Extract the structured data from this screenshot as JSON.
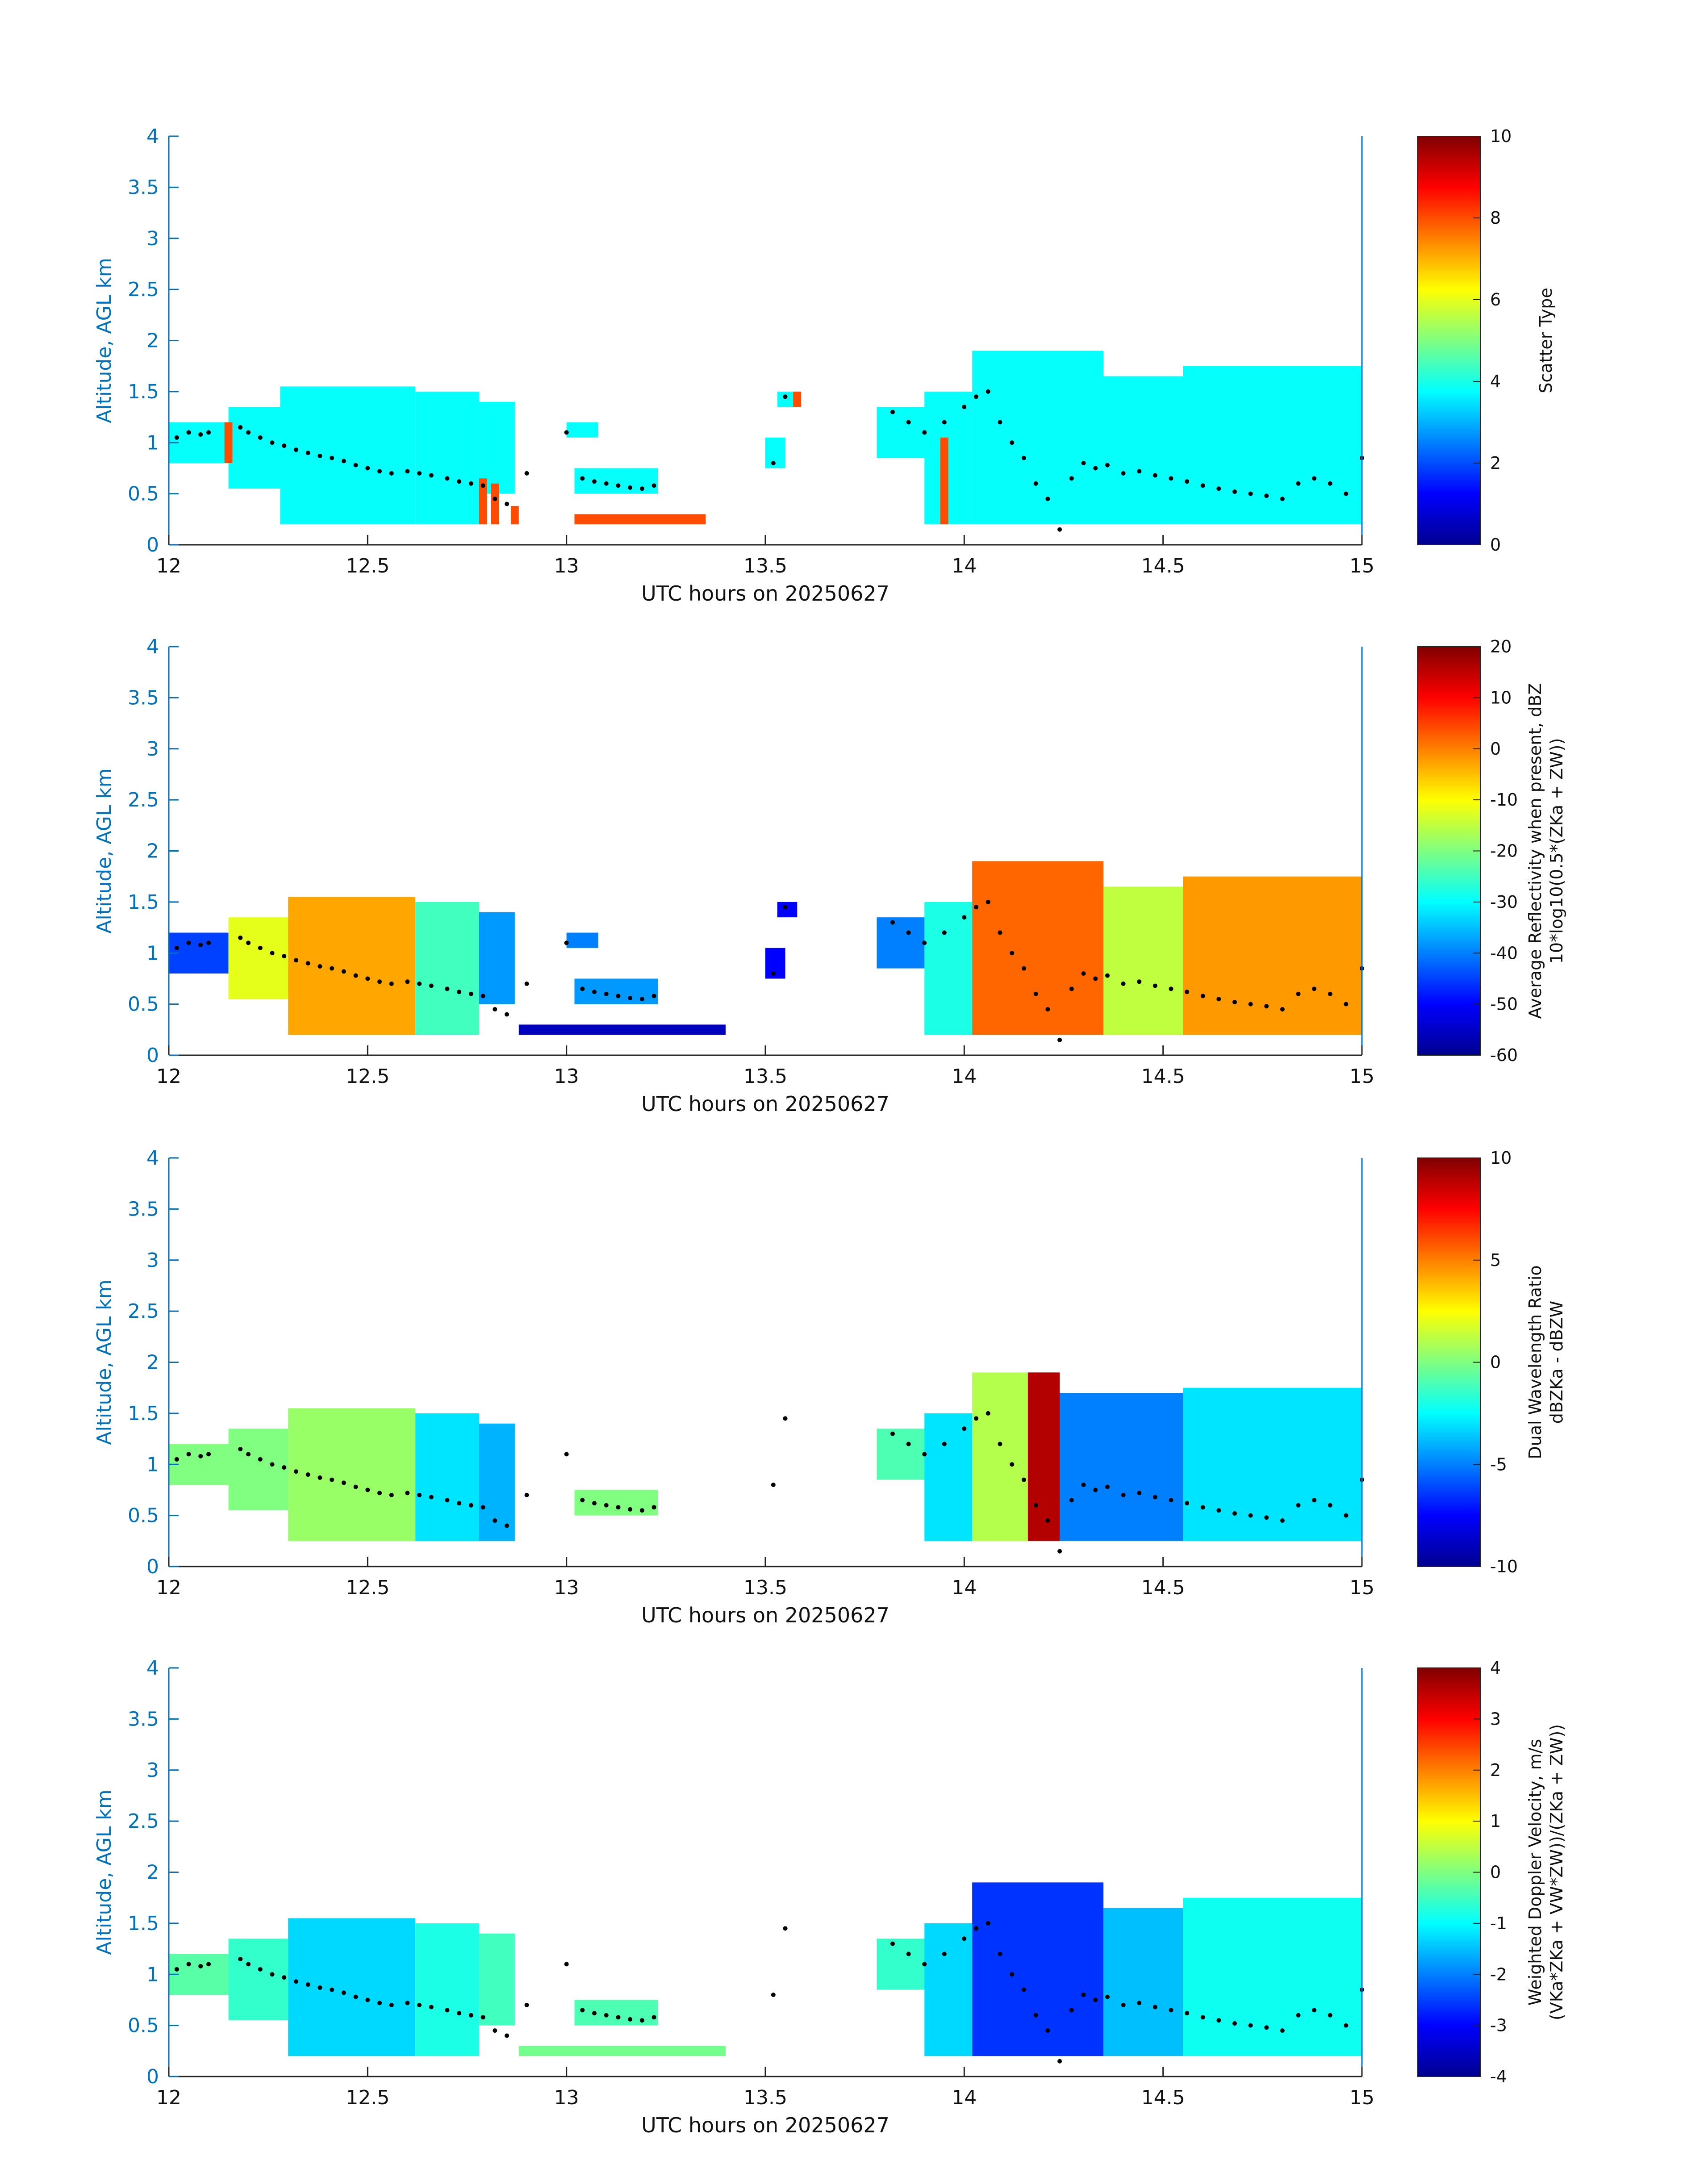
{
  "figure": {
    "xlabel": "UTC hours on 20250627",
    "ylabel": "Altitude, AGL km"
  },
  "colors": {
    "axis": "#0072BD",
    "colormap": "jet",
    "scatter_type_orange": "#ff4500",
    "scatter_type_cyan": "#2cf7d8",
    "marker": "#000000"
  },
  "chart_data": [
    {
      "type": "heatmap",
      "panel": 1,
      "title": "",
      "xlabel": "UTC hours on 20250627",
      "ylabel": "Altitude, AGL km",
      "xlim": [
        12,
        15
      ],
      "ylim": [
        0,
        4
      ],
      "x_ticks": [
        "12",
        "12.5",
        "13",
        "13.5",
        "14",
        "14.5",
        "15"
      ],
      "y_ticks": [
        "0",
        "0.5",
        "1",
        "1.5",
        "2",
        "2.5",
        "3",
        "3.5",
        "4"
      ],
      "colorbar": {
        "label": "Scatter Type",
        "clim": [
          0,
          10
        ],
        "ticks": [
          "0",
          "2",
          "4",
          "6",
          "8",
          "10"
        ]
      },
      "variable": "scatter_type",
      "description_values": "cloud echo mostly value ~3.8 (cyan); sparse value ~8 (orange) at lowest gates",
      "regions": [
        {
          "t": [
            12.0,
            12.15
          ],
          "base": 0.8,
          "top": 1.2,
          "value": 3.8
        },
        {
          "t": [
            12.15,
            12.28
          ],
          "base": 0.55,
          "top": 1.35,
          "value": 3.8
        },
        {
          "t": [
            12.28,
            12.62
          ],
          "base": 0.2,
          "top": 1.55,
          "value": 3.8
        },
        {
          "t": [
            12.62,
            12.78
          ],
          "base": 0.2,
          "top": 1.5,
          "value": 3.8
        },
        {
          "t": [
            12.78,
            12.87
          ],
          "base": 0.5,
          "top": 1.4,
          "value": 3.8
        },
        {
          "t": [
            13.0,
            13.08
          ],
          "base": 1.05,
          "top": 1.2,
          "value": 3.8
        },
        {
          "t": [
            13.02,
            13.23
          ],
          "base": 0.5,
          "top": 0.75,
          "value": 3.8
        },
        {
          "t": [
            13.53,
            13.58
          ],
          "base": 1.35,
          "top": 1.5,
          "value": 3.8
        },
        {
          "t": [
            13.5,
            13.55
          ],
          "base": 0.75,
          "top": 1.05,
          "value": 3.8
        },
        {
          "t": [
            13.78,
            13.94
          ],
          "base": 0.85,
          "top": 1.35,
          "value": 3.8
        },
        {
          "t": [
            13.9,
            14.02
          ],
          "base": 0.2,
          "top": 1.5,
          "value": 3.8
        },
        {
          "t": [
            14.02,
            14.35
          ],
          "base": 0.2,
          "top": 1.9,
          "value": 3.8
        },
        {
          "t": [
            14.35,
            14.55
          ],
          "base": 0.2,
          "top": 1.65,
          "value": 3.8
        },
        {
          "t": [
            14.55,
            15.0
          ],
          "base": 0.2,
          "top": 1.75,
          "value": 3.8
        },
        {
          "t": [
            12.14,
            12.16
          ],
          "base": 0.8,
          "top": 1.2,
          "value": 8.0
        },
        {
          "t": [
            12.78,
            12.8
          ],
          "base": 0.2,
          "top": 0.65,
          "value": 8.0
        },
        {
          "t": [
            12.81,
            12.83
          ],
          "base": 0.2,
          "top": 0.6,
          "value": 8.0
        },
        {
          "t": [
            12.86,
            12.88
          ],
          "base": 0.2,
          "top": 0.38,
          "value": 8.0
        },
        {
          "t": [
            13.02,
            13.35
          ],
          "base": 0.2,
          "top": 0.3,
          "value": 8.0
        },
        {
          "t": [
            13.94,
            13.96
          ],
          "base": 0.2,
          "top": 1.05,
          "value": 8.0
        },
        {
          "t": [
            13.57,
            13.59
          ],
          "base": 1.35,
          "top": 1.5,
          "value": 8.0
        }
      ]
    },
    {
      "type": "heatmap",
      "panel": 2,
      "title": "",
      "xlabel": "UTC hours on 20250627",
      "ylabel": "Altitude, AGL km",
      "xlim": [
        12,
        15
      ],
      "ylim": [
        0,
        4
      ],
      "x_ticks": [
        "12",
        "12.5",
        "13",
        "13.5",
        "14",
        "14.5",
        "15"
      ],
      "y_ticks": [
        "0",
        "0.5",
        "1",
        "1.5",
        "2",
        "2.5",
        "3",
        "3.5",
        "4"
      ],
      "colorbar": {
        "label_line1": "Average Reflectivity when present, dBZ",
        "label_line2": "10*log10(0.5*(Z",
        "label_sub1": "Ka",
        "label_mid": " + Z",
        "label_sub2": "W",
        "label_end": "))",
        "clim": [
          -60,
          20
        ],
        "ticks": [
          "-60",
          "-50",
          "-40",
          "-30",
          "-20",
          "-10",
          "0",
          "10",
          "20"
        ]
      },
      "variable": "reflectivity_dBZ",
      "regions": [
        {
          "t": [
            12.0,
            12.15
          ],
          "base": 0.8,
          "top": 1.2,
          "value": -45
        },
        {
          "t": [
            12.15,
            12.3
          ],
          "base": 0.55,
          "top": 1.35,
          "value": -12
        },
        {
          "t": [
            12.3,
            12.62
          ],
          "base": 0.2,
          "top": 1.55,
          "value": -3
        },
        {
          "t": [
            12.62,
            12.78
          ],
          "base": 0.2,
          "top": 1.5,
          "value": -25
        },
        {
          "t": [
            12.78,
            12.87
          ],
          "base": 0.5,
          "top": 1.4,
          "value": -38
        },
        {
          "t": [
            13.0,
            13.08
          ],
          "base": 1.05,
          "top": 1.2,
          "value": -40
        },
        {
          "t": [
            13.02,
            13.23
          ],
          "base": 0.5,
          "top": 0.75,
          "value": -38
        },
        {
          "t": [
            12.88,
            13.4
          ],
          "base": 0.2,
          "top": 0.3,
          "value": -55
        },
        {
          "t": [
            13.53,
            13.58
          ],
          "base": 1.35,
          "top": 1.5,
          "value": -50
        },
        {
          "t": [
            13.5,
            13.55
          ],
          "base": 0.75,
          "top": 1.05,
          "value": -50
        },
        {
          "t": [
            13.78,
            13.94
          ],
          "base": 0.85,
          "top": 1.35,
          "value": -40
        },
        {
          "t": [
            13.9,
            14.02
          ],
          "base": 0.2,
          "top": 1.5,
          "value": -28
        },
        {
          "t": [
            14.02,
            14.35
          ],
          "base": 0.2,
          "top": 1.9,
          "value": 2
        },
        {
          "t": [
            14.35,
            14.55
          ],
          "base": 0.2,
          "top": 1.65,
          "value": -15
        },
        {
          "t": [
            14.55,
            15.0
          ],
          "base": 0.2,
          "top": 1.75,
          "value": -2
        }
      ]
    },
    {
      "type": "heatmap",
      "panel": 3,
      "title": "",
      "xlabel": "UTC hours on 20250627",
      "ylabel": "Altitude, AGL km",
      "xlim": [
        12,
        15
      ],
      "ylim": [
        0,
        4
      ],
      "x_ticks": [
        "12",
        "12.5",
        "13",
        "13.5",
        "14",
        "14.5",
        "15"
      ],
      "y_ticks": [
        "0",
        "0.5",
        "1",
        "1.5",
        "2",
        "2.5",
        "3",
        "3.5",
        "4"
      ],
      "colorbar": {
        "label_line1": "Dual Wavelength Ratio",
        "label_line2": "dBZ",
        "label_sub1": "Ka",
        "label_mid": " - dBZ",
        "label_sub2": "W",
        "label_end": "",
        "clim": [
          -10,
          10
        ],
        "ticks": [
          "-10",
          "-5",
          "0",
          "5",
          "10"
        ]
      },
      "variable": "dual_wavelength_ratio",
      "regions": [
        {
          "t": [
            12.0,
            12.15
          ],
          "base": 0.8,
          "top": 1.2,
          "value": 0
        },
        {
          "t": [
            12.15,
            12.3
          ],
          "base": 0.55,
          "top": 1.35,
          "value": 0
        },
        {
          "t": [
            12.3,
            12.62
          ],
          "base": 0.25,
          "top": 1.55,
          "value": 0.5
        },
        {
          "t": [
            12.62,
            12.78
          ],
          "base": 0.25,
          "top": 1.5,
          "value": -3
        },
        {
          "t": [
            12.78,
            12.87
          ],
          "base": 0.25,
          "top": 1.4,
          "value": -4
        },
        {
          "t": [
            13.02,
            13.23
          ],
          "base": 0.5,
          "top": 0.75,
          "value": 0
        },
        {
          "t": [
            13.78,
            13.94
          ],
          "base": 0.85,
          "top": 1.35,
          "value": -1
        },
        {
          "t": [
            13.9,
            14.02
          ],
          "base": 0.25,
          "top": 1.5,
          "value": -3
        },
        {
          "t": [
            14.02,
            14.16
          ],
          "base": 0.25,
          "top": 1.9,
          "value": 1
        },
        {
          "t": [
            14.16,
            14.24
          ],
          "base": 0.25,
          "top": 1.9,
          "value": 9
        },
        {
          "t": [
            14.24,
            14.55
          ],
          "base": 0.25,
          "top": 1.7,
          "value": -5
        },
        {
          "t": [
            14.55,
            15.0
          ],
          "base": 0.25,
          "top": 1.75,
          "value": -3
        }
      ]
    },
    {
      "type": "heatmap",
      "panel": 4,
      "title": "",
      "xlabel": "UTC hours on 20250627",
      "ylabel": "Altitude, AGL km",
      "xlim": [
        12,
        15
      ],
      "ylim": [
        0,
        4
      ],
      "x_ticks": [
        "12",
        "12.5",
        "13",
        "13.5",
        "14",
        "14.5",
        "15"
      ],
      "y_ticks": [
        "0",
        "0.5",
        "1",
        "1.5",
        "2",
        "2.5",
        "3",
        "3.5",
        "4"
      ],
      "colorbar": {
        "label_line1": "Weighted Doppler Velocity, m/s",
        "label_line2": "(V",
        "label_sub1": "Ka",
        "label_mid": "*Z",
        "label_sub2": "Ka",
        "label_end": " + V_W*Z_W))/(Z_Ka + Z_W))",
        "clim": [
          -4,
          4
        ],
        "ticks": [
          "-4",
          "-3",
          "-2",
          "-1",
          "0",
          "1",
          "2",
          "3",
          "4"
        ]
      },
      "variable": "doppler_velocity_m_s",
      "regions": [
        {
          "t": [
            12.0,
            12.15
          ],
          "base": 0.8,
          "top": 1.2,
          "value": -0.3
        },
        {
          "t": [
            12.15,
            12.3
          ],
          "base": 0.55,
          "top": 1.35,
          "value": -0.6
        },
        {
          "t": [
            12.3,
            12.62
          ],
          "base": 0.2,
          "top": 1.55,
          "value": -1.3
        },
        {
          "t": [
            12.62,
            12.78
          ],
          "base": 0.2,
          "top": 1.5,
          "value": -0.8
        },
        {
          "t": [
            12.78,
            12.87
          ],
          "base": 0.5,
          "top": 1.4,
          "value": -0.5
        },
        {
          "t": [
            13.02,
            13.23
          ],
          "base": 0.5,
          "top": 0.75,
          "value": -0.4
        },
        {
          "t": [
            12.88,
            13.4
          ],
          "base": 0.2,
          "top": 0.3,
          "value": -0.1
        },
        {
          "t": [
            13.78,
            13.94
          ],
          "base": 0.85,
          "top": 1.35,
          "value": -0.6
        },
        {
          "t": [
            13.9,
            14.02
          ],
          "base": 0.2,
          "top": 1.5,
          "value": -1.3
        },
        {
          "t": [
            14.02,
            14.35
          ],
          "base": 0.2,
          "top": 1.9,
          "value": -2.6
        },
        {
          "t": [
            14.35,
            14.55
          ],
          "base": 0.2,
          "top": 1.65,
          "value": -1.5
        },
        {
          "t": [
            14.55,
            15.0
          ],
          "base": 0.2,
          "top": 1.75,
          "value": -0.9
        }
      ]
    }
  ],
  "markers": {
    "description": "black dot markers (cloud base estimates), km AGL",
    "t": [
      12.02,
      12.05,
      12.08,
      12.1,
      12.18,
      12.2,
      12.23,
      12.26,
      12.29,
      12.32,
      12.35,
      12.38,
      12.41,
      12.44,
      12.47,
      12.5,
      12.53,
      12.56,
      12.6,
      12.63,
      12.66,
      12.7,
      12.73,
      12.76,
      12.79,
      12.82,
      12.85,
      12.9,
      13.0,
      13.04,
      13.07,
      13.1,
      13.13,
      13.16,
      13.19,
      13.22,
      13.52,
      13.55,
      13.82,
      13.86,
      13.9,
      13.95,
      14.0,
      14.03,
      14.06,
      14.09,
      14.12,
      14.15,
      14.18,
      14.21,
      14.24,
      14.27,
      14.3,
      14.33,
      14.36,
      14.4,
      14.44,
      14.48,
      14.52,
      14.56,
      14.6,
      14.64,
      14.68,
      14.72,
      14.76,
      14.8,
      14.84,
      14.88,
      14.92,
      14.96,
      15.0
    ],
    "alt": [
      1.05,
      1.1,
      1.08,
      1.1,
      1.15,
      1.1,
      1.05,
      1.0,
      0.97,
      0.93,
      0.9,
      0.87,
      0.85,
      0.82,
      0.78,
      0.75,
      0.72,
      0.7,
      0.72,
      0.7,
      0.68,
      0.65,
      0.62,
      0.6,
      0.58,
      0.45,
      0.4,
      0.7,
      1.1,
      0.65,
      0.62,
      0.6,
      0.58,
      0.56,
      0.55,
      0.58,
      0.8,
      1.45,
      1.3,
      1.2,
      1.1,
      1.2,
      1.35,
      1.45,
      1.5,
      1.2,
      1.0,
      0.85,
      0.6,
      0.45,
      0.15,
      0.65,
      0.8,
      0.75,
      0.78,
      0.7,
      0.72,
      0.68,
      0.65,
      0.62,
      0.58,
      0.55,
      0.52,
      0.5,
      0.48,
      0.45,
      0.6,
      0.65,
      0.6,
      0.5,
      0.85
    ]
  }
}
